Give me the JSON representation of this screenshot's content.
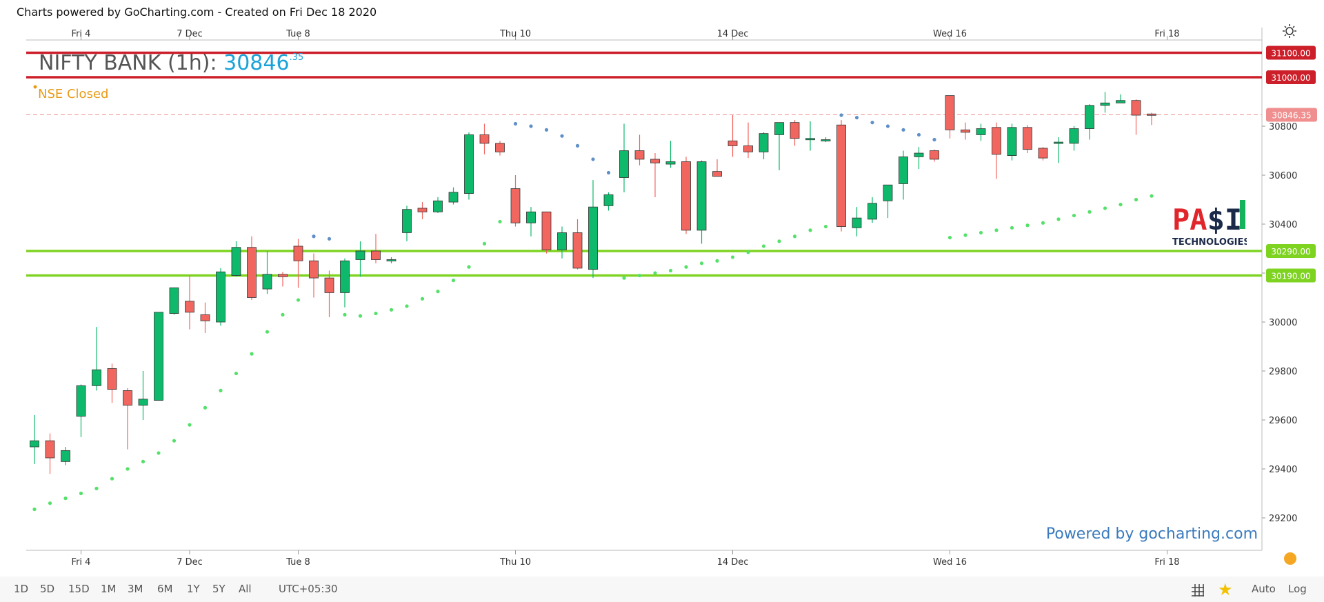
{
  "header": {
    "title": "Charts powered by GoCharting.com - Created on Fri Dec 18 2020"
  },
  "symbol": {
    "name": "NIFTY BANK (1h):",
    "price_main": "30846",
    "price_dec": ".35"
  },
  "market_status": "NSE Closed",
  "watermark": "Powered by gocharting.com",
  "logo": {
    "text": "PA$I",
    "sub": "TECHNOLOGIES"
  },
  "colors": {
    "up": "#0fb96b",
    "down": "#f26660",
    "candle_border": "#333333",
    "resistance": "#cc1f2a",
    "support": "#7ed321",
    "psar_up": "#55e06a",
    "psar_down": "#5f8fc8",
    "current_price": "#f08f8f",
    "symbol_price": "#1aa3d9",
    "market_status": "#e89b16",
    "watermark": "#3b7bbd"
  },
  "toolbar": {
    "ranges": [
      "1D",
      "5D",
      "15D",
      "1M",
      "3M",
      "6M",
      "1Y",
      "5Y",
      "All"
    ],
    "timezone": "UTC+05:30",
    "grid_icon": "grid-icon",
    "star_icon": "star-icon",
    "auto_label": "Auto",
    "log_label": "Log"
  },
  "chart_data": {
    "type": "candlestick",
    "title": "NIFTY BANK (1h)",
    "y_axis": {
      "position": "right",
      "ylim": [
        29100,
        31200
      ],
      "ticks": [
        29200,
        29400,
        29600,
        29800,
        30000,
        30200,
        30400,
        30600,
        30800
      ]
    },
    "x_axis": {
      "top_labels": [
        "Fri 4",
        "7 Dec",
        "Tue 8",
        "Thu 10",
        "14 Dec",
        "Wed 16",
        "Fri 18"
      ],
      "bottom_labels": [
        "Fri 4",
        "7 Dec",
        "Tue 8",
        "Thu 10",
        "14 Dec",
        "Wed 16",
        "Fri 18"
      ],
      "label_candle_index": [
        3,
        10,
        17,
        31,
        45,
        59,
        73
      ]
    },
    "candles": [
      {
        "o": 29490,
        "h": 29620,
        "l": 29420,
        "c": 29515
      },
      {
        "o": 29515,
        "h": 29545,
        "l": 29380,
        "c": 29445
      },
      {
        "o": 29430,
        "h": 29490,
        "l": 29415,
        "c": 29475
      },
      {
        "o": 29615,
        "h": 29745,
        "l": 29530,
        "c": 29740
      },
      {
        "o": 29740,
        "h": 29980,
        "l": 29720,
        "c": 29805
      },
      {
        "o": 29810,
        "h": 29830,
        "l": 29670,
        "c": 29725
      },
      {
        "o": 29720,
        "h": 29730,
        "l": 29480,
        "c": 29660
      },
      {
        "o": 29660,
        "h": 29800,
        "l": 29600,
        "c": 29685
      },
      {
        "o": 29680,
        "h": 30040,
        "l": 29680,
        "c": 30040
      },
      {
        "o": 30035,
        "h": 30140,
        "l": 30030,
        "c": 30140
      },
      {
        "o": 30085,
        "h": 30190,
        "l": 29970,
        "c": 30040
      },
      {
        "o": 30030,
        "h": 30080,
        "l": 29955,
        "c": 30005
      },
      {
        "o": 30000,
        "h": 30220,
        "l": 29985,
        "c": 30205
      },
      {
        "o": 30190,
        "h": 30330,
        "l": 30185,
        "c": 30305
      },
      {
        "o": 30305,
        "h": 30350,
        "l": 30090,
        "c": 30100
      },
      {
        "o": 30135,
        "h": 30290,
        "l": 30115,
        "c": 30195
      },
      {
        "o": 30195,
        "h": 30205,
        "l": 30145,
        "c": 30185
      },
      {
        "o": 30310,
        "h": 30340,
        "l": 30140,
        "c": 30250
      },
      {
        "o": 30250,
        "h": 30280,
        "l": 30100,
        "c": 30180
      },
      {
        "o": 30180,
        "h": 30210,
        "l": 30020,
        "c": 30120
      },
      {
        "o": 30120,
        "h": 30260,
        "l": 30060,
        "c": 30250
      },
      {
        "o": 30255,
        "h": 30330,
        "l": 30185,
        "c": 30290
      },
      {
        "o": 30290,
        "h": 30360,
        "l": 30240,
        "c": 30255
      },
      {
        "o": 30255,
        "h": 30265,
        "l": 30240,
        "c": 30255
      },
      {
        "o": 30365,
        "h": 30475,
        "l": 30330,
        "c": 30460
      },
      {
        "o": 30465,
        "h": 30490,
        "l": 30420,
        "c": 30450
      },
      {
        "o": 30450,
        "h": 30510,
        "l": 30445,
        "c": 30495
      },
      {
        "o": 30490,
        "h": 30550,
        "l": 30480,
        "c": 30530
      },
      {
        "o": 30525,
        "h": 30775,
        "l": 30500,
        "c": 30765
      },
      {
        "o": 30765,
        "h": 30810,
        "l": 30685,
        "c": 30730
      },
      {
        "o": 30730,
        "h": 30740,
        "l": 30680,
        "c": 30695
      },
      {
        "o": 30545,
        "h": 30600,
        "l": 30390,
        "c": 30405
      },
      {
        "o": 30405,
        "h": 30470,
        "l": 30350,
        "c": 30450
      },
      {
        "o": 30450,
        "h": 30450,
        "l": 30280,
        "c": 30295
      },
      {
        "o": 30295,
        "h": 30390,
        "l": 30260,
        "c": 30365
      },
      {
        "o": 30365,
        "h": 30420,
        "l": 30215,
        "c": 30220
      },
      {
        "o": 30215,
        "h": 30580,
        "l": 30180,
        "c": 30470
      },
      {
        "o": 30475,
        "h": 30530,
        "l": 30455,
        "c": 30520
      },
      {
        "o": 30590,
        "h": 30810,
        "l": 30530,
        "c": 30700
      },
      {
        "o": 30700,
        "h": 30765,
        "l": 30640,
        "c": 30665
      },
      {
        "o": 30665,
        "h": 30690,
        "l": 30510,
        "c": 30650
      },
      {
        "o": 30645,
        "h": 30740,
        "l": 30630,
        "c": 30655
      },
      {
        "o": 30655,
        "h": 30675,
        "l": 30360,
        "c": 30375
      },
      {
        "o": 30375,
        "h": 30660,
        "l": 30320,
        "c": 30655
      },
      {
        "o": 30615,
        "h": 30665,
        "l": 30595,
        "c": 30595
      },
      {
        "o": 30740,
        "h": 30845,
        "l": 30675,
        "c": 30720
      },
      {
        "o": 30720,
        "h": 30815,
        "l": 30670,
        "c": 30695
      },
      {
        "o": 30695,
        "h": 30775,
        "l": 30665,
        "c": 30770
      },
      {
        "o": 30765,
        "h": 30815,
        "l": 30620,
        "c": 30815
      },
      {
        "o": 30815,
        "h": 30825,
        "l": 30720,
        "c": 30750
      },
      {
        "o": 30750,
        "h": 30820,
        "l": 30700,
        "c": 30750
      },
      {
        "o": 30745,
        "h": 30755,
        "l": 30735,
        "c": 30745
      },
      {
        "o": 30805,
        "h": 30825,
        "l": 30370,
        "c": 30390
      },
      {
        "o": 30385,
        "h": 30470,
        "l": 30350,
        "c": 30425
      },
      {
        "o": 30420,
        "h": 30510,
        "l": 30405,
        "c": 30485
      },
      {
        "o": 30495,
        "h": 30560,
        "l": 30425,
        "c": 30560
      },
      {
        "o": 30565,
        "h": 30700,
        "l": 30500,
        "c": 30675
      },
      {
        "o": 30675,
        "h": 30715,
        "l": 30625,
        "c": 30690
      },
      {
        "o": 30700,
        "h": 30705,
        "l": 30655,
        "c": 30665
      },
      {
        "o": 30925,
        "h": 30925,
        "l": 30750,
        "c": 30785
      },
      {
        "o": 30785,
        "h": 30815,
        "l": 30745,
        "c": 30775
      },
      {
        "o": 30765,
        "h": 30810,
        "l": 30740,
        "c": 30790
      },
      {
        "o": 30795,
        "h": 30815,
        "l": 30585,
        "c": 30685
      },
      {
        "o": 30680,
        "h": 30810,
        "l": 30660,
        "c": 30795
      },
      {
        "o": 30795,
        "h": 30805,
        "l": 30690,
        "c": 30705
      },
      {
        "o": 30710,
        "h": 30715,
        "l": 30660,
        "c": 30670
      },
      {
        "o": 30730,
        "h": 30755,
        "l": 30650,
        "c": 30735
      },
      {
        "o": 30730,
        "h": 30800,
        "l": 30700,
        "c": 30790
      },
      {
        "o": 30790,
        "h": 30890,
        "l": 30745,
        "c": 30885
      },
      {
        "o": 30885,
        "h": 30940,
        "l": 30855,
        "c": 30895
      },
      {
        "o": 30895,
        "h": 30930,
        "l": 30895,
        "c": 30905
      },
      {
        "o": 30905,
        "h": 30910,
        "l": 30765,
        "c": 30845
      },
      {
        "o": 30850,
        "h": 30855,
        "l": 30805,
        "c": 30846.35
      }
    ],
    "parabolic_sar": [
      {
        "i": 0,
        "v": 29235
      },
      {
        "i": 1,
        "v": 29260
      },
      {
        "i": 2,
        "v": 29280
      },
      {
        "i": 3,
        "v": 29300
      },
      {
        "i": 4,
        "v": 29320
      },
      {
        "i": 5,
        "v": 29360
      },
      {
        "i": 6,
        "v": 29400
      },
      {
        "i": 7,
        "v": 29430
      },
      {
        "i": 8,
        "v": 29465
      },
      {
        "i": 9,
        "v": 29515
      },
      {
        "i": 10,
        "v": 29580
      },
      {
        "i": 11,
        "v": 29650
      },
      {
        "i": 12,
        "v": 29720
      },
      {
        "i": 13,
        "v": 29790
      },
      {
        "i": 14,
        "v": 29870
      },
      {
        "i": 15,
        "v": 29960
      },
      {
        "i": 16,
        "v": 30030
      },
      {
        "i": 17,
        "v": 30090
      },
      {
        "i": 18,
        "v": 30350
      },
      {
        "i": 19,
        "v": 30340
      },
      {
        "i": 20,
        "v": 30030
      },
      {
        "i": 21,
        "v": 30025
      },
      {
        "i": 22,
        "v": 30035
      },
      {
        "i": 23,
        "v": 30050
      },
      {
        "i": 24,
        "v": 30065
      },
      {
        "i": 25,
        "v": 30095
      },
      {
        "i": 26,
        "v": 30125
      },
      {
        "i": 27,
        "v": 30170
      },
      {
        "i": 28,
        "v": 30225
      },
      {
        "i": 29,
        "v": 30320
      },
      {
        "i": 30,
        "v": 30410
      },
      {
        "i": 31,
        "v": 30810
      },
      {
        "i": 32,
        "v": 30800
      },
      {
        "i": 33,
        "v": 30785
      },
      {
        "i": 34,
        "v": 30760
      },
      {
        "i": 35,
        "v": 30720
      },
      {
        "i": 36,
        "v": 30665
      },
      {
        "i": 37,
        "v": 30610
      },
      {
        "i": 38,
        "v": 30180
      },
      {
        "i": 39,
        "v": 30190
      },
      {
        "i": 40,
        "v": 30200
      },
      {
        "i": 41,
        "v": 30210
      },
      {
        "i": 42,
        "v": 30225
      },
      {
        "i": 43,
        "v": 30240
      },
      {
        "i": 44,
        "v": 30250
      },
      {
        "i": 45,
        "v": 30265
      },
      {
        "i": 46,
        "v": 30285
      },
      {
        "i": 47,
        "v": 30310
      },
      {
        "i": 48,
        "v": 30330
      },
      {
        "i": 49,
        "v": 30350
      },
      {
        "i": 50,
        "v": 30375
      },
      {
        "i": 51,
        "v": 30390
      },
      {
        "i": 52,
        "v": 30845
      },
      {
        "i": 53,
        "v": 30835
      },
      {
        "i": 54,
        "v": 30815
      },
      {
        "i": 55,
        "v": 30800
      },
      {
        "i": 56,
        "v": 30785
      },
      {
        "i": 57,
        "v": 30765
      },
      {
        "i": 58,
        "v": 30745
      },
      {
        "i": 59,
        "v": 30345
      },
      {
        "i": 60,
        "v": 30355
      },
      {
        "i": 61,
        "v": 30365
      },
      {
        "i": 62,
        "v": 30375
      },
      {
        "i": 63,
        "v": 30385
      },
      {
        "i": 64,
        "v": 30395
      },
      {
        "i": 65,
        "v": 30405
      },
      {
        "i": 66,
        "v": 30420
      },
      {
        "i": 67,
        "v": 30435
      },
      {
        "i": 68,
        "v": 30450
      },
      {
        "i": 69,
        "v": 30465
      },
      {
        "i": 70,
        "v": 30480
      },
      {
        "i": 71,
        "v": 30500
      },
      {
        "i": 72,
        "v": 30515
      }
    ],
    "horizontal_lines": [
      {
        "value": 31100.0,
        "label": "31100.00",
        "kind": "resistance"
      },
      {
        "value": 31000.0,
        "label": "31000.00",
        "kind": "resistance"
      },
      {
        "value": 30290.0,
        "label": "30290.00",
        "kind": "support"
      },
      {
        "value": 30190.0,
        "label": "30190.00",
        "kind": "support"
      }
    ],
    "current_price": {
      "value": 30846.35,
      "label": "30846.35"
    }
  }
}
